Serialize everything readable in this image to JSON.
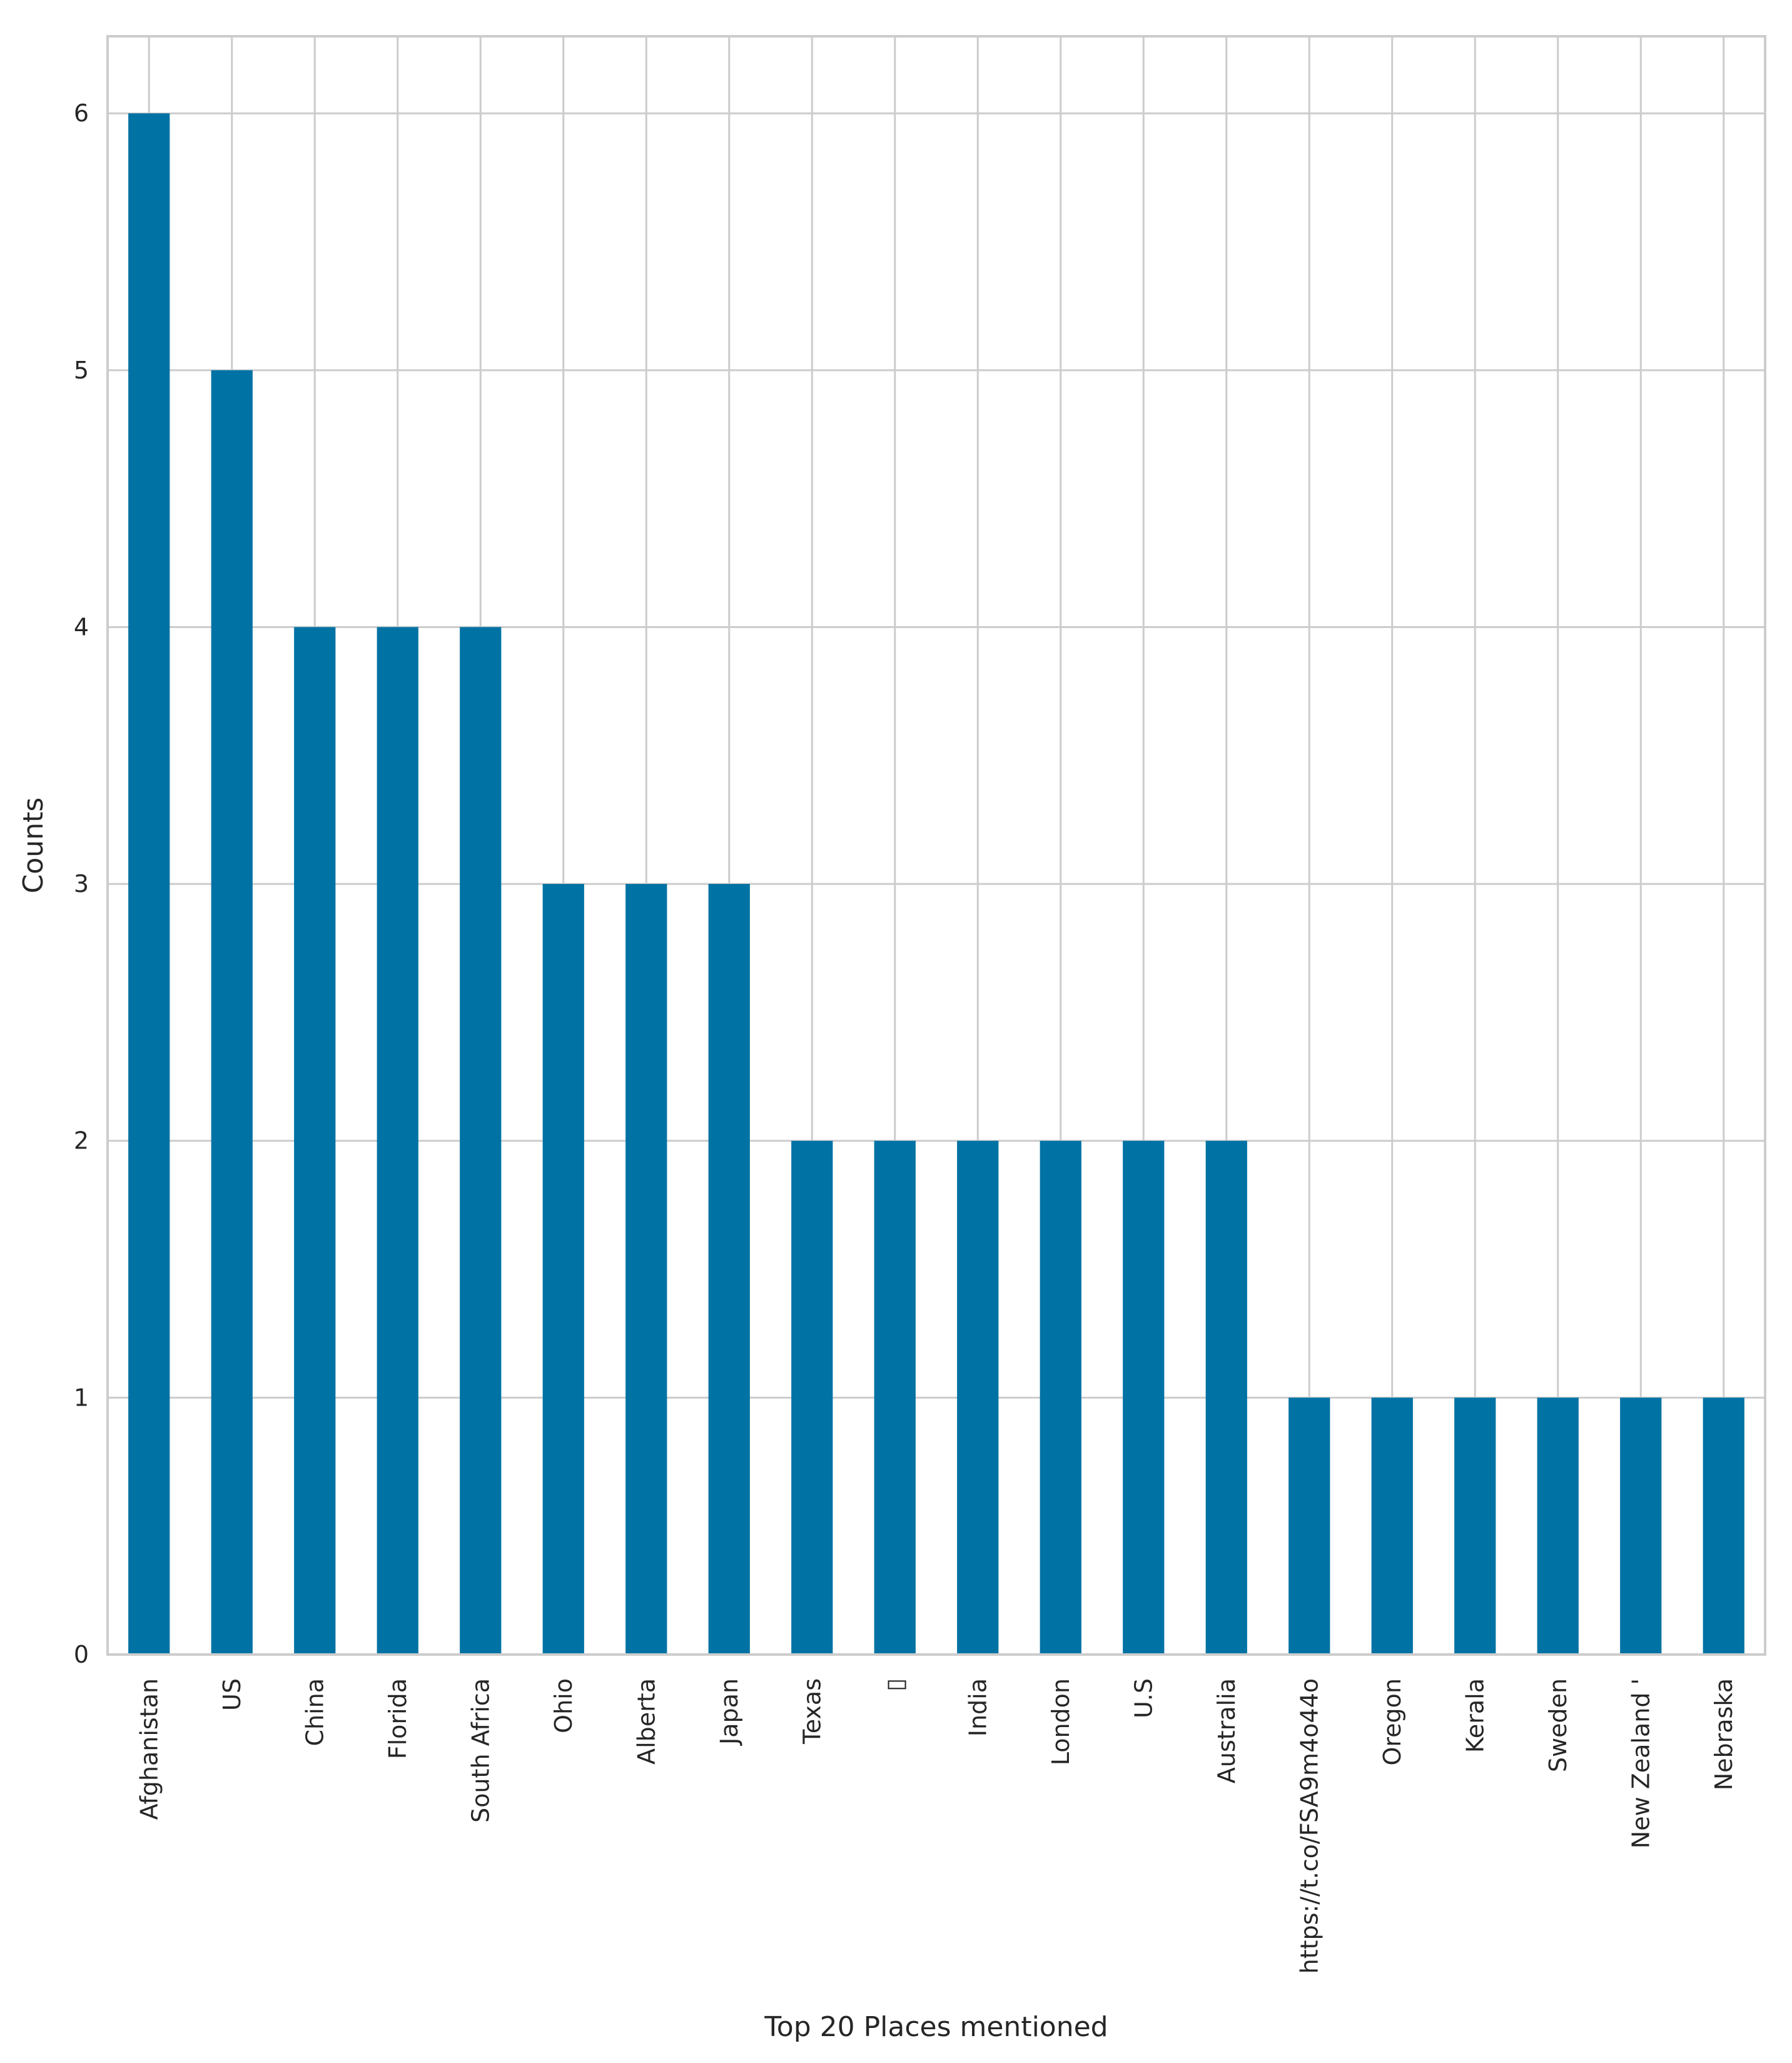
{
  "chart_data": {
    "type": "bar",
    "categories": [
      "Afghanistan",
      "US",
      "China",
      "Florida",
      "South Africa",
      "Ohio",
      "Alberta",
      "Japan",
      "Texas",
      "▯",
      "India",
      "London",
      "U.S",
      "Australia",
      "https://t.co/FSA9m4o44o",
      "Oregon",
      "Kerala",
      "Sweden",
      "New Zealand '",
      "Nebraska"
    ],
    "values": [
      6,
      5,
      4,
      4,
      4,
      3,
      3,
      3,
      2,
      2,
      2,
      2,
      2,
      2,
      1,
      1,
      1,
      1,
      1,
      1
    ],
    "xlabel": "Top 20 Places mentioned",
    "ylabel": "Counts",
    "ylim": [
      0,
      6.3
    ],
    "yticks": [
      0,
      1,
      2,
      3,
      4,
      5,
      6
    ],
    "bar_color": "#0072a4",
    "grid": true
  }
}
